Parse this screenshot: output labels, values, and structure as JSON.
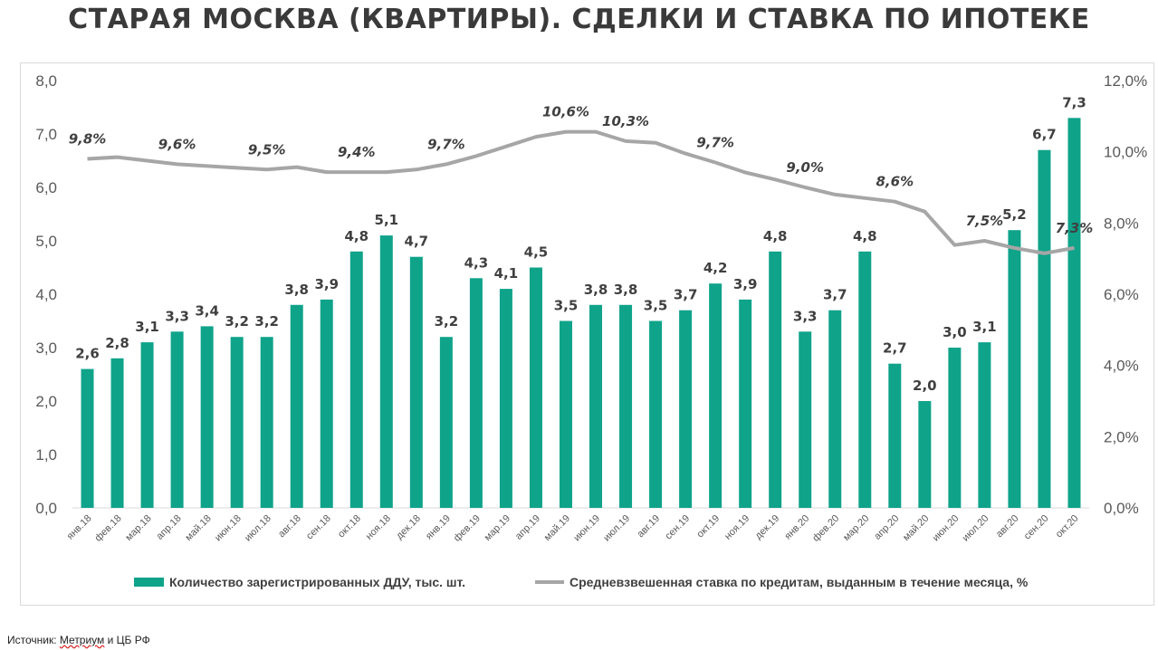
{
  "title": "СТАРАЯ МОСКВА (КВАРТИРЫ). СДЕЛКИ И СТАВКА ПО ИПОТЕКЕ",
  "source": {
    "prefix": "Источник: ",
    "underlined": "Метриум",
    "suffix": " и ЦБ РФ"
  },
  "colors": {
    "bars": "#0fa38a",
    "line": "#a6a6a6"
  },
  "chart_data": {
    "type": "bar",
    "categories": [
      "янв.18",
      "фев.18",
      "мар.18",
      "апр.18",
      "май.18",
      "июн.18",
      "июл.18",
      "авг.18",
      "сен.18",
      "окт.18",
      "ноя.18",
      "дек.18",
      "янв.19",
      "фев.19",
      "мар.19",
      "апр.19",
      "май.19",
      "июн.19",
      "июл.19",
      "авг.19",
      "сен.19",
      "окт.19",
      "ноя.19",
      "дек.19",
      "янв.20",
      "фев.20",
      "мар.20",
      "апр.20",
      "май.20",
      "июн.20",
      "июл.20",
      "авг.20",
      "сен.20",
      "окт.20"
    ],
    "series": [
      {
        "name": "Количество зарегистрированных ДДУ, тыс. шт.",
        "type": "bar",
        "axis": "left",
        "values": [
          2.6,
          2.8,
          3.1,
          3.3,
          3.4,
          3.2,
          3.2,
          3.8,
          3.9,
          4.8,
          5.1,
          4.7,
          3.2,
          4.3,
          4.1,
          4.5,
          3.5,
          3.8,
          3.8,
          3.5,
          3.7,
          4.2,
          3.9,
          4.8,
          3.3,
          3.7,
          4.8,
          2.7,
          2.0,
          3.0,
          3.1,
          5.2,
          6.7,
          7.3
        ],
        "labels": [
          "2,6",
          "2,8",
          "3,1",
          "3,3",
          "3,4",
          "3,2",
          "3,2",
          "3,8",
          "3,9",
          "4,8",
          "5,1",
          "4,7",
          "3,2",
          "4,3",
          "4,1",
          "4,5",
          "3,5",
          "3,8",
          "3,8",
          "3,5",
          "3,7",
          "4,2",
          "3,9",
          "4,8",
          "3,3",
          "3,7",
          "4,8",
          "2,7",
          "2,0",
          "3,0",
          "3,1",
          "5,2",
          "6,7",
          "7,3"
        ]
      },
      {
        "name": "Средневзвешенная ставка по кредитам, выданным в течение месяца, %",
        "type": "line",
        "axis": "right",
        "values": [
          9.8,
          9.85,
          9.75,
          9.65,
          9.6,
          9.55,
          9.5,
          9.57,
          9.43,
          9.43,
          9.43,
          9.5,
          9.65,
          9.88,
          10.15,
          10.42,
          10.56,
          10.56,
          10.3,
          10.25,
          9.95,
          9.7,
          9.42,
          9.22,
          9.0,
          8.8,
          8.7,
          8.6,
          8.32,
          7.38,
          7.5,
          7.3,
          7.15,
          7.3
        ],
        "labels": [
          {
            "index": 0,
            "text": "9,8%"
          },
          {
            "index": 3,
            "text": "9,6%"
          },
          {
            "index": 6,
            "text": "9,5%"
          },
          {
            "index": 9,
            "text": "9,4%"
          },
          {
            "index": 12,
            "text": "9,7%"
          },
          {
            "index": 16,
            "text": "10,6%"
          },
          {
            "index": 18,
            "text": "10,3%"
          },
          {
            "index": 21,
            "text": "9,7%"
          },
          {
            "index": 24,
            "text": "9,0%"
          },
          {
            "index": 27,
            "text": "8,6%"
          },
          {
            "index": 30,
            "text": "7,5%"
          },
          {
            "index": 33,
            "text": "7,3%"
          }
        ]
      }
    ],
    "y_left": {
      "ylim": [
        0,
        8
      ],
      "ticks": [
        "0,0",
        "1,0",
        "2,0",
        "3,0",
        "4,0",
        "5,0",
        "6,0",
        "7,0",
        "8,0"
      ]
    },
    "y_right": {
      "ylim": [
        0,
        12
      ],
      "ticks": [
        "0,0%",
        "2,0%",
        "4,0%",
        "6,0%",
        "8,0%",
        "10,0%",
        "12,0%"
      ]
    },
    "grid": false,
    "legend_position": "bottom"
  }
}
